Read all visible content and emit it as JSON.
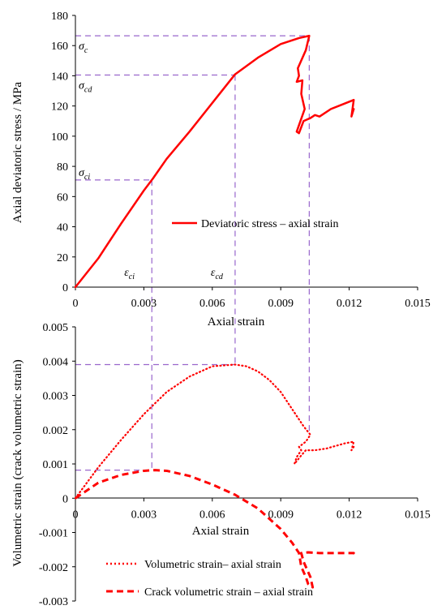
{
  "chart_data": [
    {
      "type": "line",
      "xlabel": "Axial strain",
      "ylabel": "Axial deviatoric stress / MPa",
      "xlim": [
        0,
        0.015
      ],
      "ylim": [
        0,
        180
      ],
      "x_ticks": [
        "0",
        "0.003",
        "0.006",
        "0.009",
        "0.012",
        "0.015"
      ],
      "y_ticks": [
        "0",
        "20",
        "40",
        "60",
        "80",
        "100",
        "120",
        "140",
        "160",
        "180"
      ],
      "grid": false,
      "legend_position": "center-right",
      "series": [
        {
          "name": "Deviatoric stress – axial strain",
          "color": "#ff0000",
          "style": "solid",
          "points": [
            [
              0,
              0
            ],
            [
              0.001,
              19
            ],
            [
              0.002,
              42
            ],
            [
              0.003,
              64
            ],
            [
              0.0034,
              72
            ],
            [
              0.004,
              85
            ],
            [
              0.005,
              103
            ],
            [
              0.006,
              122
            ],
            [
              0.007,
              141
            ],
            [
              0.008,
              152
            ],
            [
              0.009,
              161
            ],
            [
              0.0098,
              165
            ],
            [
              0.01025,
              166.5
            ],
            [
              0.0101,
              157
            ],
            [
              0.00975,
              145
            ],
            [
              0.0098,
              140
            ],
            [
              0.0097,
              136
            ],
            [
              0.00995,
              137
            ],
            [
              0.0099,
              128
            ],
            [
              0.01005,
              118
            ],
            [
              0.0097,
              103
            ],
            [
              0.0098,
              102
            ],
            [
              0.01,
              110
            ],
            [
              0.0103,
              112
            ],
            [
              0.0105,
              114
            ],
            [
              0.0107,
              113
            ],
            [
              0.0112,
              118
            ],
            [
              0.0117,
              121
            ],
            [
              0.0122,
              124
            ],
            [
              0.0121,
              113
            ],
            [
              0.0122,
              118
            ],
            [
              0.01215,
              116
            ]
          ]
        }
      ],
      "annotations": [
        {
          "base": "σ",
          "sub": "c",
          "y": 166.5
        },
        {
          "base": "σ",
          "sub": "cd",
          "y": 140.5
        },
        {
          "base": "σ",
          "sub": "ci",
          "y": 71
        },
        {
          "base": "ε",
          "sub": "ci",
          "x": 0.00335
        },
        {
          "base": "ε",
          "sub": "cd",
          "x": 0.007
        }
      ]
    },
    {
      "type": "line",
      "xlabel": "Axial strain",
      "ylabel": "Volumetric strain (crack volumetric strain)",
      "xlim": [
        0,
        0.015
      ],
      "ylim": [
        -0.003,
        0.005
      ],
      "x_ticks": [
        "0",
        "0.003",
        "0.006",
        "0.009",
        "0.012",
        "0.015"
      ],
      "y_ticks": [
        "-0.003",
        "-0.002",
        "-0.001",
        "0",
        "0.001",
        "0.002",
        "0.003",
        "0.004",
        "0.005"
      ],
      "grid": false,
      "legend_position": "bottom",
      "series": [
        {
          "name": "Volumetric strain– axial strain",
          "color": "#ff0000",
          "style": "dotted",
          "points": [
            [
              0,
              0
            ],
            [
              0.001,
              0.0009
            ],
            [
              0.002,
              0.0017
            ],
            [
              0.003,
              0.00245
            ],
            [
              0.004,
              0.0031
            ],
            [
              0.005,
              0.00355
            ],
            [
              0.006,
              0.00385
            ],
            [
              0.007,
              0.0039
            ],
            [
              0.0075,
              0.00385
            ],
            [
              0.008,
              0.0037
            ],
            [
              0.0085,
              0.00345
            ],
            [
              0.009,
              0.0031
            ],
            [
              0.0095,
              0.0026
            ],
            [
              0.01,
              0.0021
            ],
            [
              0.0103,
              0.00185
            ],
            [
              0.0101,
              0.00165
            ],
            [
              0.0098,
              0.0015
            ],
            [
              0.0099,
              0.0014
            ],
            [
              0.0097,
              0.0012
            ],
            [
              0.0096,
              0.001
            ],
            [
              0.0099,
              0.00125
            ],
            [
              0.0101,
              0.0014
            ],
            [
              0.0105,
              0.0014
            ],
            [
              0.011,
              0.00145
            ],
            [
              0.0118,
              0.0016
            ],
            [
              0.0122,
              0.00165
            ],
            [
              0.0121,
              0.0014
            ],
            [
              0.0122,
              0.0015
            ]
          ]
        },
        {
          "name": "Crack volumetric strain – axial strain",
          "color": "#ff0000",
          "style": "dashed",
          "points": [
            [
              0,
              0
            ],
            [
              0.001,
              0.00045
            ],
            [
              0.002,
              0.00068
            ],
            [
              0.003,
              0.0008
            ],
            [
              0.0035,
              0.00082
            ],
            [
              0.004,
              0.0008
            ],
            [
              0.005,
              0.00065
            ],
            [
              0.006,
              0.0004
            ],
            [
              0.007,
              0.0001
            ],
            [
              0.008,
              -0.0003
            ],
            [
              0.009,
              -0.0009
            ],
            [
              0.0095,
              -0.0013
            ],
            [
              0.0098,
              -0.0016
            ],
            [
              0.0099,
              -0.002
            ],
            [
              0.0101,
              -0.0023
            ],
            [
              0.0102,
              -0.0025
            ],
            [
              0.0104,
              -0.0026
            ],
            [
              0.0103,
              -0.0023
            ],
            [
              0.01,
              -0.00185
            ],
            [
              0.0099,
              -0.0016
            ],
            [
              0.0102,
              -0.00158
            ],
            [
              0.0107,
              -0.0016
            ],
            [
              0.0112,
              -0.0016
            ],
            [
              0.0117,
              -0.0016
            ],
            [
              0.0122,
              -0.0016
            ],
            [
              0.0121,
              -0.00165
            ]
          ]
        }
      ]
    }
  ]
}
